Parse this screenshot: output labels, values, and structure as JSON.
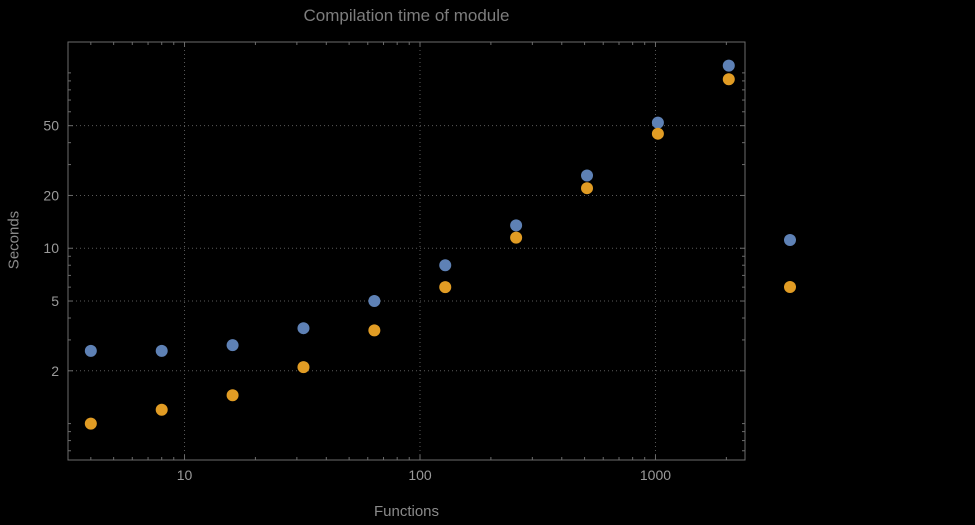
{
  "title": "Compilation time of module",
  "chart_data": {
    "type": "scatter",
    "title": "Compilation time of module",
    "xlabel": "Functions",
    "ylabel": "Seconds",
    "xscale": "log",
    "yscale": "log",
    "xlim": [
      3.2,
      2400
    ],
    "ylim": [
      0.62,
      150
    ],
    "grid": "dotted",
    "x_ticks": [
      10,
      100,
      1000
    ],
    "y_ticks": [
      2,
      5,
      10,
      20,
      50
    ],
    "x": [
      4,
      8,
      16,
      32,
      64,
      128,
      256,
      512,
      1024,
      2048
    ],
    "series": [
      {
        "name": "series-1-blue",
        "color": "#5e81b5",
        "values": [
          2.6,
          2.6,
          2.8,
          3.5,
          5.0,
          8.0,
          13.5,
          26,
          52,
          110
        ]
      },
      {
        "name": "series-2-orange",
        "color": "#e19c24",
        "values": [
          1.0,
          1.2,
          1.45,
          2.1,
          3.4,
          6.0,
          11.5,
          22,
          45,
          92
        ]
      }
    ],
    "legend_position": "right",
    "legend": [
      {
        "color": "#5e81b5",
        "label": ""
      },
      {
        "color": "#e19c24",
        "label": ""
      }
    ]
  },
  "colors": {
    "background": "#000000",
    "title_text": "#7d7d7d",
    "axis_label_text": "#8a8a8a",
    "tick_label_text": "#9a9a9a",
    "frame": "#6c6c6c",
    "tick": "#6c6c6c",
    "grid": "#5a5a5a"
  }
}
